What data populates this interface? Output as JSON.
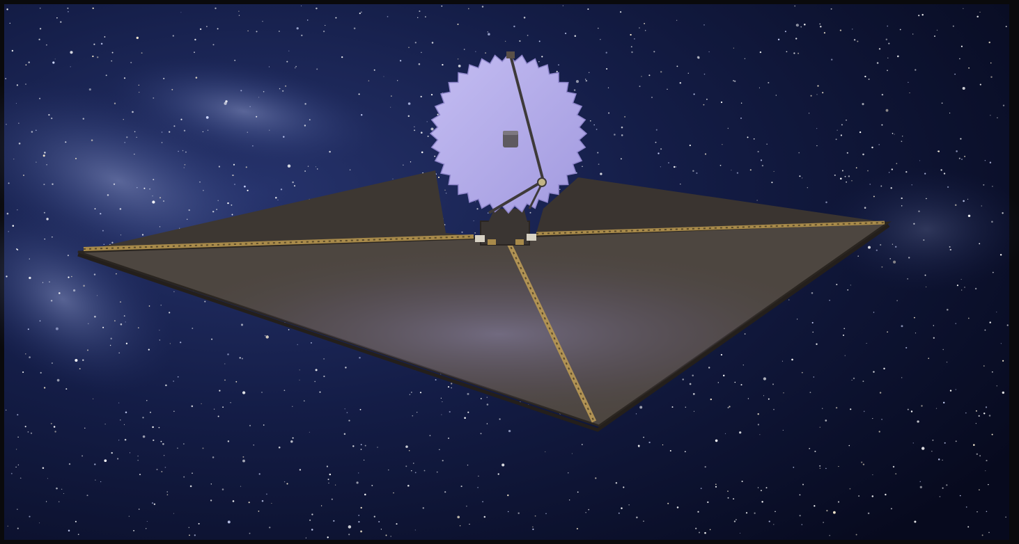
{
  "image": {
    "subject": "telescope-illustration",
    "colors": {
      "space_dark": "#0b1130",
      "space_mid": "#1b2a5e",
      "milky_way": "#6f7fb4",
      "sunshield": "#4d4640",
      "sunshield_edge": "#2a2520",
      "boom_gold": "#a88a4a",
      "mirror": "#b5adea",
      "mirror_shadow": "#8f86cc",
      "strut": "#3e3a3a",
      "frame_border": "#0a0a0c"
    }
  }
}
